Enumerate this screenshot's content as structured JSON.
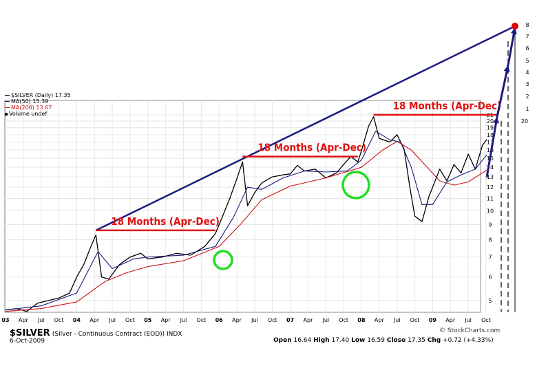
{
  "header": {
    "title": "$SILVER (Daily) 17.35",
    "ma50": "MA(50) 15.39",
    "ma200": "MA(200) 13.67",
    "volume": "Volume undef"
  },
  "footer": {
    "symbol": "$SILVER",
    "description": "(Silver - Continuous Contract (EOD)) INDX",
    "date": "6-Oct-2009",
    "open_label": "Open",
    "open": "16.64",
    "high_label": "High",
    "high": "17.40",
    "low_label": "Low",
    "low": "16.59",
    "close_label": "Close",
    "close": "17.35",
    "chg_label": "Chg",
    "chg": "+0.72 (+4.33%)",
    "watermark": "© StockCharts.com"
  },
  "colors": {
    "price": "#000000",
    "ma50": "#1b1b7a",
    "ma200": "#cc1111",
    "trendline": "#1a1a80",
    "annotation": "#e01010",
    "circle": "#22dd22",
    "target_dot": "#e00000"
  },
  "chart_data": {
    "type": "line",
    "title": "$SILVER (Daily) 17.35",
    "xlabel": "",
    "ylabel": "",
    "y_scale": "log",
    "ylim": [
      4.5,
      20.8
    ],
    "grid": true,
    "x_tick_labels": [
      "03",
      "Apr",
      "Jul",
      "Oct",
      "04",
      "Apr",
      "Jul",
      "Oct",
      "05",
      "Apr",
      "Jul",
      "Oct",
      "06",
      "Apr",
      "Jul",
      "Oct",
      "07",
      "Apr",
      "Jul",
      "Oct",
      "08",
      "Apr",
      "Jul",
      "Oct",
      "09",
      "Apr",
      "Jul",
      "Oct"
    ],
    "y_tick_values": [
      5,
      6,
      7,
      8,
      9,
      10,
      11,
      12,
      13,
      14,
      15,
      16,
      17,
      18,
      19,
      20,
      21
    ],
    "extension_ticks": [
      "20",
      "1",
      "2",
      "3",
      "4",
      "5",
      "6",
      "7",
      "8"
    ],
    "series": [
      {
        "name": "$SILVER",
        "x": [
          2003.0,
          2003.15,
          2003.3,
          2003.45,
          2003.6,
          2003.75,
          2003.9,
          2004.0,
          2004.1,
          2004.2,
          2004.27,
          2004.35,
          2004.45,
          2004.6,
          2004.75,
          2004.9,
          2005.0,
          2005.2,
          2005.4,
          2005.6,
          2005.8,
          2005.95,
          2006.05,
          2006.15,
          2006.25,
          2006.33,
          2006.4,
          2006.5,
          2006.6,
          2006.75,
          2006.9,
          2007.0,
          2007.1,
          2007.2,
          2007.35,
          2007.5,
          2007.65,
          2007.75,
          2007.85,
          2007.95,
          2008.0,
          2008.1,
          2008.17,
          2008.25,
          2008.4,
          2008.5,
          2008.6,
          2008.68,
          2008.75,
          2008.85,
          2008.95,
          2009.0,
          2009.1,
          2009.2,
          2009.3,
          2009.4,
          2009.5,
          2009.6,
          2009.7,
          2009.76
        ],
        "y": [
          4.65,
          4.7,
          4.6,
          4.9,
          5.0,
          5.1,
          5.3,
          6.0,
          6.6,
          7.6,
          8.3,
          6.0,
          5.9,
          6.6,
          7.0,
          7.2,
          6.9,
          7.0,
          7.2,
          7.1,
          7.6,
          8.4,
          9.6,
          11.0,
          12.8,
          14.6,
          10.4,
          11.5,
          12.4,
          13.0,
          13.2,
          13.3,
          14.2,
          13.6,
          13.8,
          12.9,
          13.4,
          14.3,
          15.2,
          14.6,
          15.9,
          19.2,
          20.7,
          17.5,
          17.0,
          18.0,
          16.1,
          12.0,
          9.6,
          9.2,
          11.2,
          12.0,
          13.8,
          12.6,
          14.3,
          13.4,
          15.5,
          13.8,
          16.6,
          17.35
        ]
      },
      {
        "name": "MA(50)",
        "x": [
          2003.0,
          2003.5,
          2004.0,
          2004.3,
          2004.5,
          2004.8,
          2005.0,
          2005.5,
          2005.95,
          2006.2,
          2006.4,
          2006.6,
          2006.9,
          2007.2,
          2007.5,
          2007.8,
          2008.0,
          2008.2,
          2008.4,
          2008.55,
          2008.7,
          2008.85,
          2009.0,
          2009.2,
          2009.4,
          2009.6,
          2009.76
        ],
        "y": [
          4.65,
          4.8,
          5.3,
          7.3,
          6.4,
          6.9,
          7.0,
          7.1,
          7.6,
          9.5,
          12.0,
          11.8,
          12.9,
          13.6,
          13.5,
          13.6,
          14.8,
          18.5,
          17.3,
          17.0,
          14.0,
          10.5,
          10.5,
          12.5,
          13.2,
          13.8,
          15.4
        ]
      },
      {
        "name": "MA(200)",
        "x": [
          2003.0,
          2003.5,
          2004.0,
          2004.4,
          2004.7,
          2005.0,
          2005.5,
          2006.0,
          2006.3,
          2006.6,
          2007.0,
          2007.5,
          2008.0,
          2008.3,
          2008.5,
          2008.7,
          2008.9,
          2009.1,
          2009.3,
          2009.5,
          2009.76
        ],
        "y": [
          4.6,
          4.7,
          4.95,
          5.8,
          6.2,
          6.5,
          6.8,
          7.6,
          9.0,
          10.9,
          12.1,
          12.9,
          14.0,
          16.0,
          17.1,
          16.0,
          14.2,
          12.6,
          12.2,
          12.5,
          13.7
        ]
      }
    ],
    "annotations": [
      {
        "text": "18 Months (Apr-Dec)",
        "level": 8.6,
        "x_start": 2004.27,
        "x_end": 2005.95
      },
      {
        "text": "18 Months (Apr-Dec)",
        "level": 15.2,
        "x_start": 2006.33,
        "x_end": 2007.95
      },
      {
        "text": "18 Months (Apr-Dec)",
        "level": 21.0,
        "x_start": 2008.17,
        "x_end": 2009.95
      }
    ]
  }
}
